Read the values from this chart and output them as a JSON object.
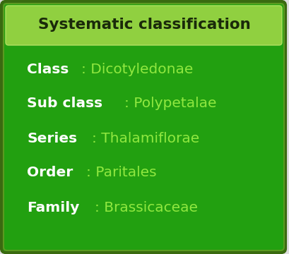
{
  "title": "Systematic classification",
  "title_bg_color": "#90d040",
  "title_text_color": "#1a2a0a",
  "body_bg_color": "#22a010",
  "outer_border_color": "#3a6a10",
  "outer_border_color2": "#5a9a20",
  "fig_bg_color": "#dddddd",
  "rows": [
    {
      "bold": "Class",
      "normal": ": Dicotyledonae"
    },
    {
      "bold": "Sub class",
      "normal": ": Polypetalae"
    },
    {
      "bold": "Series",
      "normal": ": Thalamiflorae"
    },
    {
      "bold": "Order",
      "normal": ": Paritales"
    },
    {
      "bold": "Family",
      "normal": ": Brassicaceae"
    }
  ],
  "bold_color": "#ffffff",
  "normal_color": "#90e840",
  "font_size": 14.5,
  "title_font_size": 15.5
}
